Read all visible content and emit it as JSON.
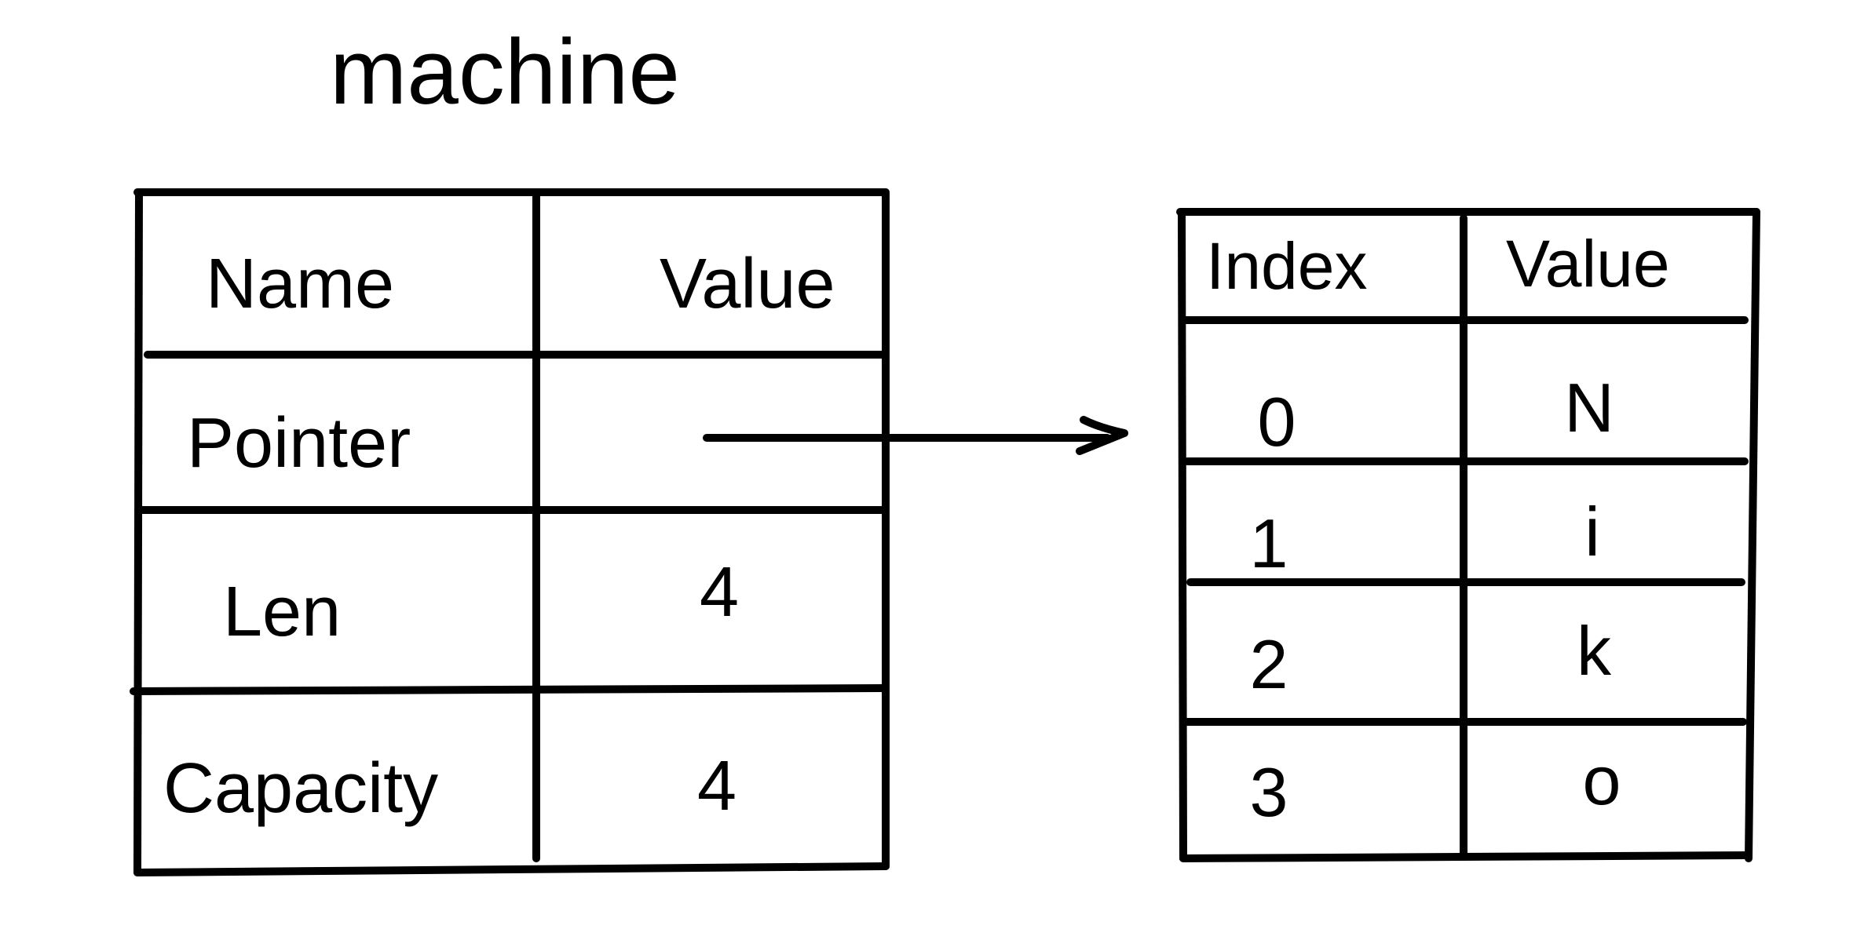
{
  "title": "machine",
  "struct_table": {
    "headers": [
      "Name",
      "Value"
    ],
    "rows": [
      {
        "name": "Pointer",
        "value": ""
      },
      {
        "name": "Len",
        "value": "4"
      },
      {
        "name": "Capacity",
        "value": "4"
      }
    ]
  },
  "array_table": {
    "headers": [
      "Index",
      "Value"
    ],
    "rows": [
      {
        "index": "0",
        "value": "N"
      },
      {
        "index": "1",
        "value": "i"
      },
      {
        "index": "2",
        "value": "k"
      },
      {
        "index": "3",
        "value": "o"
      }
    ]
  }
}
